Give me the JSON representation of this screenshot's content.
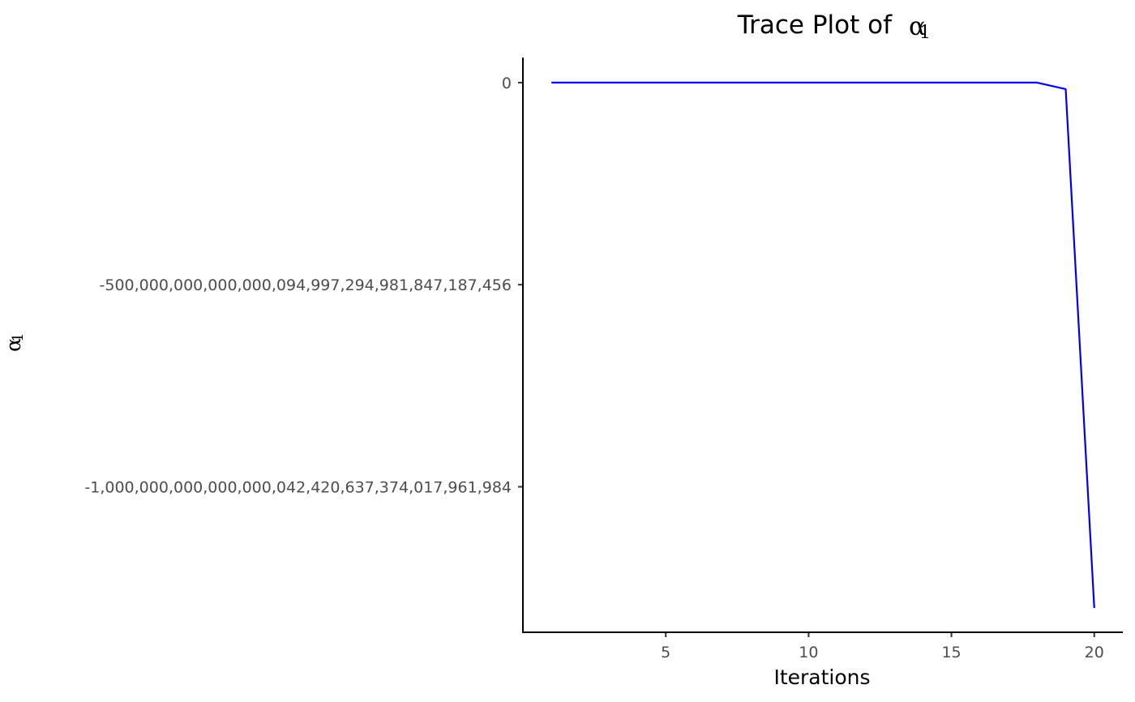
{
  "chart_data": {
    "type": "line",
    "title": "Trace Plot of",
    "title_symbol": "α",
    "title_symbol_sub": "1",
    "xlabel": "Iterations",
    "ylabel_symbol": "α",
    "ylabel_symbol_sub": "1",
    "x": [
      1,
      2,
      3,
      4,
      5,
      6,
      7,
      8,
      9,
      10,
      11,
      12,
      13,
      14,
      15,
      16,
      17,
      18,
      19,
      20
    ],
    "series": [
      {
        "color": "#0000ee",
        "values": [
          0,
          0,
          0,
          0,
          0,
          0,
          0,
          0,
          0,
          0,
          0,
          0,
          0,
          0,
          0,
          0,
          0,
          0,
          -1.6e+22,
          -1.3e+24
        ]
      }
    ],
    "xlim": [
      0,
      21
    ],
    "ylim": [
      -1.36e+24,
      6.2e+22
    ],
    "x_ticks": [
      5,
      10,
      15,
      20
    ],
    "x_tick_labels": [
      "5",
      "10",
      "15",
      "20"
    ],
    "y_ticks": [
      0,
      -5e+23,
      -1e+24
    ],
    "y_tick_labels": [
      "0",
      "-500,000,000,000,000,094,997,294,981,847,187,456",
      "-1,000,000,000,000,000,042,420,637,374,017,961,984"
    ],
    "grid": false,
    "legend": "none"
  }
}
